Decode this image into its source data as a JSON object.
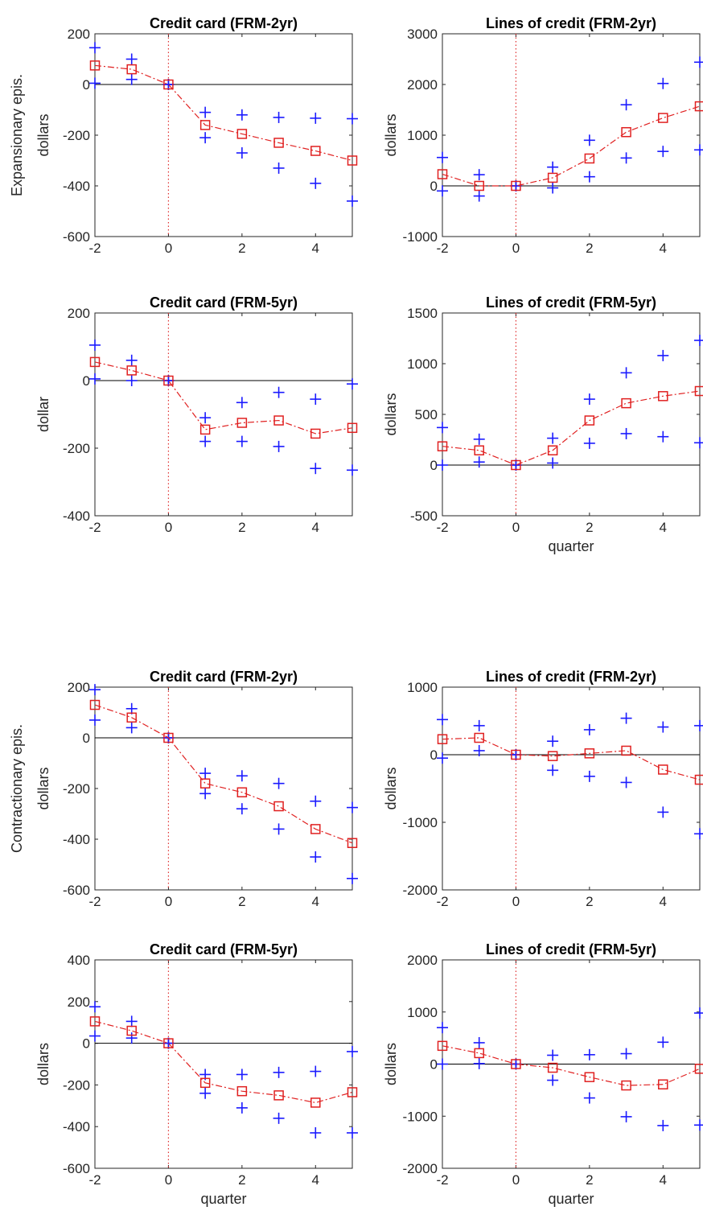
{
  "row_labels": [
    "Expansionary epis.",
    "Contractionary epis."
  ],
  "chart_data": [
    {
      "type": "line",
      "title": "Credit card (FRM-2yr)",
      "xlabel": "",
      "ylabel": "dollars",
      "xlim": [
        -2,
        5
      ],
      "ylim": [
        -600,
        200
      ],
      "xticks": [
        "-2",
        "0",
        "2",
        "4"
      ],
      "yticks": [
        "-600",
        "-400",
        "-200",
        "0",
        "200"
      ],
      "x": [
        -2,
        -1,
        0,
        1,
        2,
        3,
        4,
        5
      ],
      "series": [
        {
          "role": "estimate",
          "values": [
            75,
            60,
            0,
            -160,
            -195,
            -230,
            -262,
            -300
          ]
        },
        {
          "role": "upper",
          "values": [
            145,
            100,
            0,
            -110,
            -120,
            -130,
            -133,
            -135
          ]
        },
        {
          "role": "lower",
          "values": [
            5,
            20,
            0,
            -210,
            -270,
            -330,
            -390,
            -460
          ]
        }
      ]
    },
    {
      "type": "line",
      "title": "Lines of credit (FRM-2yr)",
      "xlabel": "",
      "ylabel": "dollars",
      "xlim": [
        -2,
        5
      ],
      "ylim": [
        -1000,
        3000
      ],
      "xticks": [
        "-2",
        "0",
        "2",
        "4"
      ],
      "yticks": [
        "-1000",
        "0",
        "1000",
        "2000",
        "3000"
      ],
      "x": [
        -2,
        -1,
        0,
        1,
        2,
        3,
        4,
        5
      ],
      "series": [
        {
          "role": "estimate",
          "values": [
            230,
            0,
            0,
            160,
            540,
            1060,
            1340,
            1570
          ]
        },
        {
          "role": "upper",
          "values": [
            560,
            220,
            0,
            370,
            900,
            1600,
            2020,
            2440
          ]
        },
        {
          "role": "lower",
          "values": [
            -100,
            -200,
            0,
            -40,
            180,
            550,
            680,
            710
          ]
        }
      ]
    },
    {
      "type": "line",
      "title": "Credit card (FRM-5yr)",
      "xlabel": "",
      "ylabel": "dollar",
      "xlim": [
        -2,
        5
      ],
      "ylim": [
        -400,
        200
      ],
      "xticks": [
        "-2",
        "0",
        "2",
        "4"
      ],
      "yticks": [
        "-400",
        "-200",
        "0",
        "200"
      ],
      "x": [
        -2,
        -1,
        0,
        1,
        2,
        3,
        4,
        5
      ],
      "series": [
        {
          "role": "estimate",
          "values": [
            55,
            30,
            0,
            -145,
            -125,
            -118,
            -157,
            -140
          ]
        },
        {
          "role": "upper",
          "values": [
            105,
            60,
            0,
            -110,
            -65,
            -35,
            -55,
            -10
          ]
        },
        {
          "role": "lower",
          "values": [
            5,
            0,
            0,
            -180,
            -180,
            -195,
            -260,
            -265
          ]
        }
      ]
    },
    {
      "type": "line",
      "title": "Lines of credit (FRM-5yr)",
      "xlabel": "quarter",
      "ylabel": "dollars",
      "xlim": [
        -2,
        5
      ],
      "ylim": [
        -500,
        1500
      ],
      "xticks": [
        "-2",
        "0",
        "2",
        "4"
      ],
      "yticks": [
        "-500",
        "0",
        "500",
        "1000",
        "1500"
      ],
      "x": [
        -2,
        -1,
        0,
        1,
        2,
        3,
        4,
        5
      ],
      "series": [
        {
          "role": "estimate",
          "values": [
            185,
            145,
            0,
            145,
            440,
            610,
            680,
            730
          ]
        },
        {
          "role": "upper",
          "values": [
            370,
            255,
            0,
            265,
            650,
            910,
            1080,
            1230
          ]
        },
        {
          "role": "lower",
          "values": [
            0,
            30,
            0,
            20,
            215,
            310,
            280,
            220
          ]
        }
      ]
    },
    {
      "type": "line",
      "title": "Credit card (FRM-2yr)",
      "xlabel": "",
      "ylabel": "dollars",
      "xlim": [
        -2,
        5
      ],
      "ylim": [
        -600,
        200
      ],
      "xticks": [
        "-2",
        "0",
        "2",
        "4"
      ],
      "yticks": [
        "-600",
        "-400",
        "-200",
        "0",
        "200"
      ],
      "x": [
        -2,
        -1,
        0,
        1,
        2,
        3,
        4,
        5
      ],
      "series": [
        {
          "role": "estimate",
          "values": [
            130,
            80,
            0,
            -180,
            -215,
            -270,
            -360,
            -415
          ]
        },
        {
          "role": "upper",
          "values": [
            190,
            115,
            0,
            -140,
            -150,
            -180,
            -250,
            -275
          ]
        },
        {
          "role": "lower",
          "values": [
            70,
            40,
            0,
            -220,
            -280,
            -360,
            -470,
            -555
          ]
        }
      ]
    },
    {
      "type": "line",
      "title": "Lines of credit (FRM-2yr)",
      "xlabel": "",
      "ylabel": "dollars",
      "xlim": [
        -2,
        5
      ],
      "ylim": [
        -2000,
        1000
      ],
      "xticks": [
        "-2",
        "0",
        "2",
        "4"
      ],
      "yticks": [
        "-2000",
        "-1000",
        "0",
        "1000"
      ],
      "x": [
        -2,
        -1,
        0,
        1,
        2,
        3,
        4,
        5
      ],
      "series": [
        {
          "role": "estimate",
          "values": [
            230,
            250,
            0,
            -20,
            20,
            60,
            -220,
            -370
          ]
        },
        {
          "role": "upper",
          "values": [
            520,
            430,
            0,
            200,
            370,
            540,
            410,
            430
          ]
        },
        {
          "role": "lower",
          "values": [
            -50,
            60,
            0,
            -230,
            -320,
            -410,
            -850,
            -1170
          ]
        }
      ]
    },
    {
      "type": "line",
      "title": "Credit card (FRM-5yr)",
      "xlabel": "quarter",
      "ylabel": "dollars",
      "xlim": [
        -2,
        5
      ],
      "ylim": [
        -600,
        400
      ],
      "xticks": [
        "-2",
        "0",
        "2",
        "4"
      ],
      "yticks": [
        "-600",
        "-400",
        "-200",
        "0",
        "200",
        "400"
      ],
      "x": [
        -2,
        -1,
        0,
        1,
        2,
        3,
        4,
        5
      ],
      "series": [
        {
          "role": "estimate",
          "values": [
            105,
            60,
            0,
            -190,
            -230,
            -250,
            -285,
            -235
          ]
        },
        {
          "role": "upper",
          "values": [
            175,
            105,
            0,
            -150,
            -150,
            -140,
            -135,
            -40
          ]
        },
        {
          "role": "lower",
          "values": [
            35,
            25,
            0,
            -240,
            -310,
            -360,
            -430,
            -430
          ]
        }
      ]
    },
    {
      "type": "line",
      "title": "Lines of credit (FRM-5yr)",
      "xlabel": "quarter",
      "ylabel": "dollars",
      "xlim": [
        -2,
        5
      ],
      "ylim": [
        -2000,
        2000
      ],
      "xticks": [
        "-2",
        "0",
        "2",
        "4"
      ],
      "yticks": [
        "-2000",
        "-1000",
        "0",
        "1000",
        "2000"
      ],
      "x": [
        -2,
        -1,
        0,
        1,
        2,
        3,
        4,
        5
      ],
      "series": [
        {
          "role": "estimate",
          "values": [
            350,
            210,
            0,
            -70,
            -250,
            -410,
            -390,
            -90
          ]
        },
        {
          "role": "upper",
          "values": [
            700,
            410,
            0,
            170,
            180,
            200,
            420,
            980
          ]
        },
        {
          "role": "lower",
          "values": [
            0,
            10,
            0,
            -310,
            -650,
            -1010,
            -1180,
            -1170
          ]
        }
      ]
    }
  ]
}
